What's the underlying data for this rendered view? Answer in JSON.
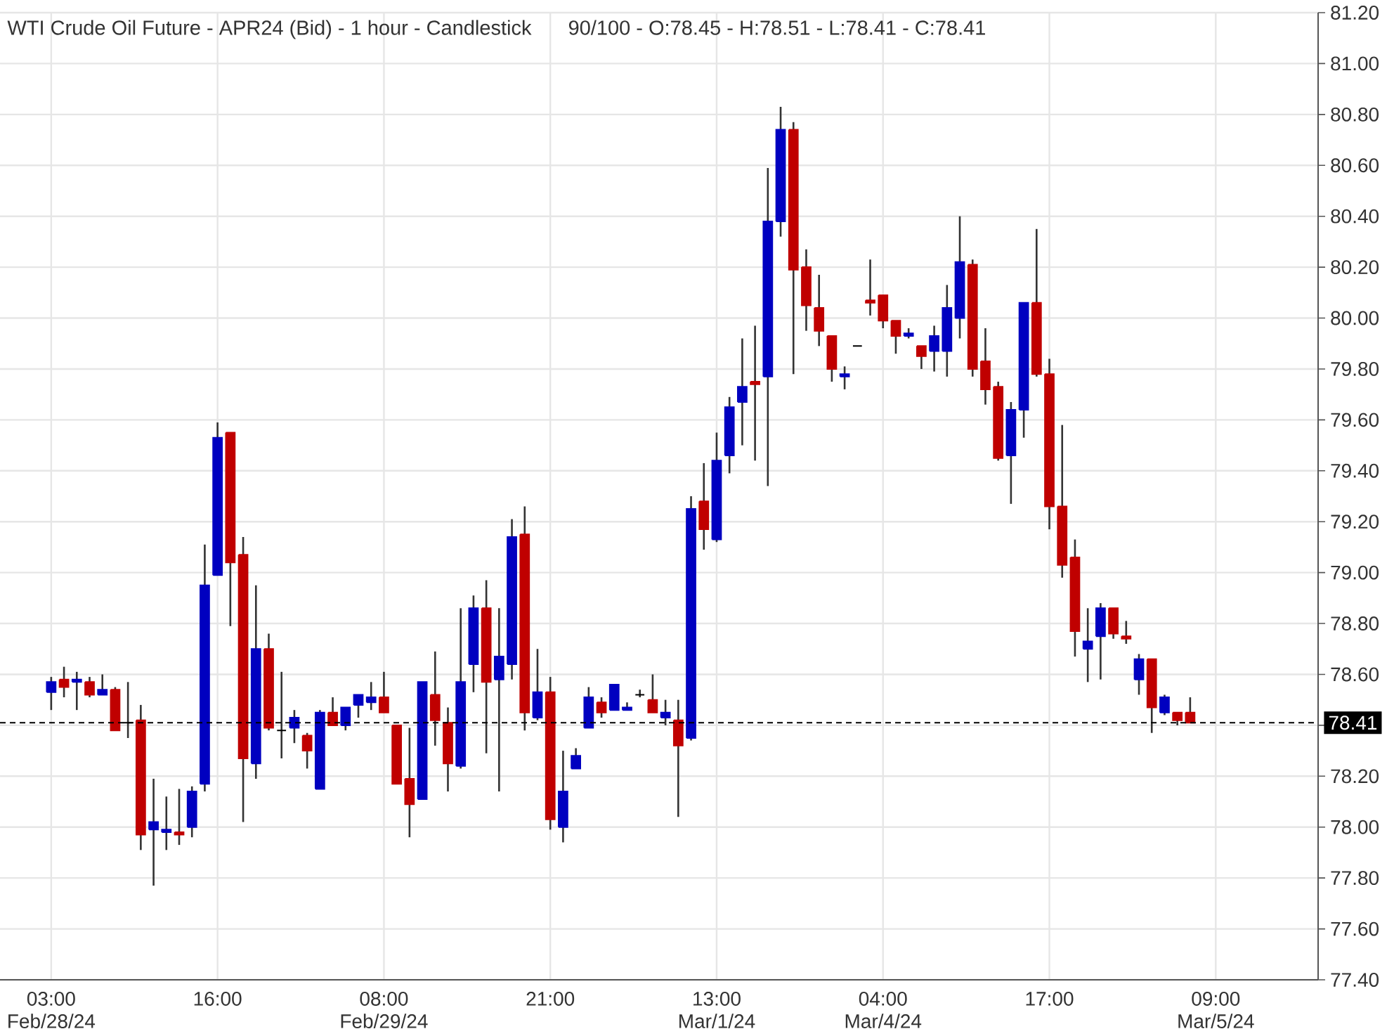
{
  "chart_data": {
    "type": "candlestick",
    "title": "WTI Crude Oil Future - APR24 (Bid) - 1 hour - Candlestick",
    "subtitle": "90/100 - O:78.45 - H:78.51 - L:78.41 - C:78.41",
    "categories": [
      "03:00 Feb/28/24",
      null,
      null,
      null,
      null,
      null,
      null,
      null,
      null,
      null,
      null,
      null,
      null,
      "16:00",
      null,
      null,
      null,
      null,
      null,
      null,
      null,
      null,
      null,
      null,
      null,
      null,
      "08:00 Feb/29/24",
      null,
      null,
      null,
      null,
      null,
      null,
      null,
      null,
      null,
      null,
      null,
      null,
      "21:00",
      null,
      null,
      null,
      null,
      null,
      null,
      null,
      null,
      null,
      null,
      null,
      null,
      "13:00 Mar/1/24",
      null,
      null,
      null,
      null,
      null,
      null,
      null,
      null,
      null,
      null,
      null,
      null,
      "04:00 Mar/4/24",
      null,
      null,
      null,
      null,
      null,
      null,
      null,
      null,
      null,
      null,
      null,
      null,
      "17:00",
      null,
      null,
      null,
      null,
      null,
      null,
      null,
      null,
      null,
      null,
      null,
      null,
      "09:00 Mar/5/24",
      null,
      null,
      null,
      null,
      null,
      null,
      null,
      null
    ],
    "ohlc": [
      [
        78.53,
        78.59,
        78.46,
        78.57
      ],
      [
        78.58,
        78.63,
        78.51,
        78.55
      ],
      [
        78.57,
        78.61,
        78.46,
        78.58
      ],
      [
        78.57,
        78.59,
        78.51,
        78.52
      ],
      [
        78.52,
        78.6,
        78.52,
        78.54
      ],
      [
        78.54,
        78.55,
        78.38,
        78.38
      ],
      [
        78.41,
        78.57,
        78.35,
        78.41
      ],
      [
        78.42,
        78.48,
        77.91,
        77.97
      ],
      [
        77.99,
        78.19,
        77.77,
        78.02
      ],
      [
        77.98,
        78.12,
        77.91,
        77.99
      ],
      [
        77.98,
        78.15,
        77.93,
        77.97
      ],
      [
        78.0,
        78.16,
        77.96,
        78.14
      ],
      [
        78.17,
        79.11,
        78.14,
        78.95
      ],
      [
        78.99,
        79.59,
        78.99,
        79.53
      ],
      [
        79.55,
        79.55,
        78.79,
        79.04
      ],
      [
        79.07,
        79.14,
        78.02,
        78.27
      ],
      [
        78.25,
        78.95,
        78.19,
        78.7
      ],
      [
        78.7,
        78.76,
        78.38,
        78.39
      ],
      [
        78.38,
        78.61,
        78.27,
        78.38
      ],
      [
        78.39,
        78.46,
        78.33,
        78.43
      ],
      [
        78.36,
        78.37,
        78.23,
        78.3
      ],
      [
        78.15,
        78.46,
        78.15,
        78.45
      ],
      [
        78.45,
        78.51,
        78.4,
        78.4
      ],
      [
        78.4,
        78.47,
        78.38,
        78.47
      ],
      [
        78.48,
        78.52,
        78.43,
        78.52
      ],
      [
        78.49,
        78.57,
        78.46,
        78.51
      ],
      [
        78.51,
        78.61,
        78.45,
        78.45
      ],
      [
        78.4,
        78.4,
        78.17,
        78.17
      ],
      [
        78.19,
        78.39,
        77.96,
        78.09
      ],
      [
        78.11,
        78.57,
        78.11,
        78.57
      ],
      [
        78.52,
        78.69,
        78.32,
        78.42
      ],
      [
        78.41,
        78.47,
        78.14,
        78.25
      ],
      [
        78.24,
        78.86,
        78.23,
        78.57
      ],
      [
        78.64,
        78.91,
        78.53,
        78.86
      ],
      [
        78.86,
        78.97,
        78.29,
        78.57
      ],
      [
        78.58,
        78.86,
        78.14,
        78.67
      ],
      [
        78.64,
        79.21,
        78.58,
        79.14
      ],
      [
        79.15,
        79.26,
        78.38,
        78.45
      ],
      [
        78.43,
        78.7,
        78.42,
        78.53
      ],
      [
        78.53,
        78.59,
        77.99,
        78.03
      ],
      [
        78.0,
        78.3,
        77.94,
        78.14
      ],
      [
        78.23,
        78.31,
        78.23,
        78.28
      ],
      [
        78.39,
        78.55,
        78.39,
        78.51
      ],
      [
        78.49,
        78.51,
        78.43,
        78.45
      ],
      [
        78.46,
        78.56,
        78.46,
        78.56
      ],
      [
        78.46,
        78.49,
        78.46,
        78.47
      ],
      [
        78.52,
        78.54,
        78.51,
        78.52
      ],
      [
        78.5,
        78.6,
        78.45,
        78.45
      ],
      [
        78.43,
        78.5,
        78.4,
        78.45
      ],
      [
        78.42,
        78.5,
        78.04,
        78.32
      ],
      [
        78.35,
        79.3,
        78.34,
        79.25
      ],
      [
        79.28,
        79.43,
        79.09,
        79.17
      ],
      [
        79.13,
        79.55,
        79.12,
        79.44
      ],
      [
        79.46,
        79.69,
        79.39,
        79.65
      ],
      [
        79.67,
        79.92,
        79.5,
        79.73
      ],
      [
        79.75,
        79.97,
        79.44,
        79.74
      ],
      [
        79.77,
        80.59,
        79.34,
        80.38
      ],
      [
        80.38,
        80.83,
        80.32,
        80.74
      ],
      [
        80.74,
        80.77,
        79.78,
        80.19
      ],
      [
        80.2,
        80.27,
        79.95,
        80.05
      ],
      [
        80.04,
        80.17,
        79.89,
        79.95
      ],
      [
        79.93,
        79.93,
        79.75,
        79.8
      ],
      [
        79.77,
        79.81,
        79.72,
        79.78
      ],
      [
        79.89,
        79.89,
        79.89,
        79.89
      ],
      [
        80.07,
        80.23,
        80.01,
        80.06
      ],
      [
        80.09,
        80.09,
        79.96,
        79.99
      ],
      [
        79.99,
        79.99,
        79.86,
        79.93
      ],
      [
        79.93,
        79.96,
        79.92,
        79.94
      ],
      [
        79.89,
        79.89,
        79.8,
        79.85
      ],
      [
        79.87,
        79.97,
        79.79,
        79.93
      ],
      [
        79.87,
        80.13,
        79.77,
        80.04
      ],
      [
        80.0,
        80.4,
        79.92,
        80.22
      ],
      [
        80.21,
        80.23,
        79.77,
        79.8
      ],
      [
        79.83,
        79.96,
        79.66,
        79.72
      ],
      [
        79.73,
        79.75,
        79.44,
        79.45
      ],
      [
        79.46,
        79.67,
        79.27,
        79.64
      ],
      [
        79.64,
        80.06,
        79.53,
        80.06
      ],
      [
        80.06,
        80.35,
        79.77,
        79.78
      ],
      [
        79.78,
        79.84,
        79.17,
        79.26
      ],
      [
        79.26,
        79.58,
        78.98,
        79.03
      ],
      [
        79.06,
        79.13,
        78.67,
        78.77
      ],
      [
        78.7,
        78.86,
        78.57,
        78.73
      ],
      [
        78.75,
        78.88,
        78.58,
        78.86
      ],
      [
        78.86,
        78.86,
        78.74,
        78.76
      ],
      [
        78.75,
        78.81,
        78.72,
        78.74
      ],
      [
        78.58,
        78.68,
        78.52,
        78.66
      ],
      [
        78.66,
        78.66,
        78.37,
        78.47
      ],
      [
        78.45,
        78.52,
        78.44,
        78.51
      ],
      [
        78.45,
        78.45,
        78.4,
        78.42
      ],
      [
        78.45,
        78.51,
        78.41,
        78.41
      ],
      null,
      null,
      null,
      null,
      null,
      null,
      null,
      null,
      null,
      null
    ],
    "colors": [
      "#0000c0",
      "#c00000",
      "#0000c0",
      "#c00000",
      "#0000c0",
      "#c00000",
      "#000000",
      "#c00000",
      "#0000c0",
      "#0000c0",
      "#c00000",
      "#0000c0",
      "#0000c0",
      "#0000c0",
      "#c00000",
      "#c00000",
      "#0000c0",
      "#c00000",
      "#000000",
      "#0000c0",
      "#c00000",
      "#0000c0",
      "#c00000",
      "#0000c0",
      "#0000c0",
      "#0000c0",
      "#c00000",
      "#c00000",
      "#c00000",
      "#0000c0",
      "#c00000",
      "#c00000",
      "#0000c0",
      "#0000c0",
      "#c00000",
      "#0000c0",
      "#0000c0",
      "#c00000",
      "#0000c0",
      "#c00000",
      "#0000c0",
      "#0000c0",
      "#0000c0",
      "#c00000",
      "#0000c0",
      "#0000c0",
      "#000000",
      "#c00000",
      "#0000c0",
      "#c00000",
      "#0000c0",
      "#c00000",
      "#0000c0",
      "#0000c0",
      "#0000c0",
      "#c00000",
      "#0000c0",
      "#0000c0",
      "#c00000",
      "#c00000",
      "#c00000",
      "#c00000",
      "#0000c0",
      "#000000",
      "#c00000",
      "#c00000",
      "#c00000",
      "#0000c0",
      "#c00000",
      "#0000c0",
      "#0000c0",
      "#0000c0",
      "#c00000",
      "#c00000",
      "#c00000",
      "#0000c0",
      "#0000c0",
      "#c00000",
      "#c00000",
      "#c00000",
      "#c00000",
      "#0000c0",
      "#0000c0",
      "#c00000",
      "#c00000",
      "#0000c0",
      "#c00000",
      "#0000c0",
      "#c00000",
      "#c00000",
      null,
      null,
      null,
      null,
      null,
      null,
      null,
      null,
      null,
      null
    ],
    "ylim": [
      77.4,
      81.2
    ],
    "yticks": [
      {
        "value": 77.4,
        "label": "77.40"
      },
      {
        "value": 77.6,
        "label": "77.60"
      },
      {
        "value": 77.8,
        "label": "77.80"
      },
      {
        "value": 78.0,
        "label": "78.00"
      },
      {
        "value": 78.2,
        "label": "78.20"
      },
      {
        "value": 78.4,
        "label": null
      },
      {
        "value": 78.6,
        "label": "78.60"
      },
      {
        "value": 78.8,
        "label": "78.80"
      },
      {
        "value": 79.0,
        "label": "79.00"
      },
      {
        "value": 79.2,
        "label": "79.20"
      },
      {
        "value": 79.4,
        "label": "79.40"
      },
      {
        "value": 79.6,
        "label": "79.60"
      },
      {
        "value": 79.8,
        "label": "79.80"
      },
      {
        "value": 80.0,
        "label": "80.00"
      },
      {
        "value": 80.2,
        "label": "80.20"
      },
      {
        "value": 80.4,
        "label": "80.40"
      },
      {
        "value": 80.6,
        "label": "80.60"
      },
      {
        "value": 80.8,
        "label": "80.80"
      },
      {
        "value": 81.0,
        "label": "81.00"
      },
      {
        "value": 81.2,
        "label": "81.20"
      }
    ],
    "ref_lines": [
      {
        "axis": "y",
        "value": 78.41,
        "label": "78.41",
        "color": "#000000",
        "line_style": "dashed"
      }
    ],
    "grid": true
  }
}
